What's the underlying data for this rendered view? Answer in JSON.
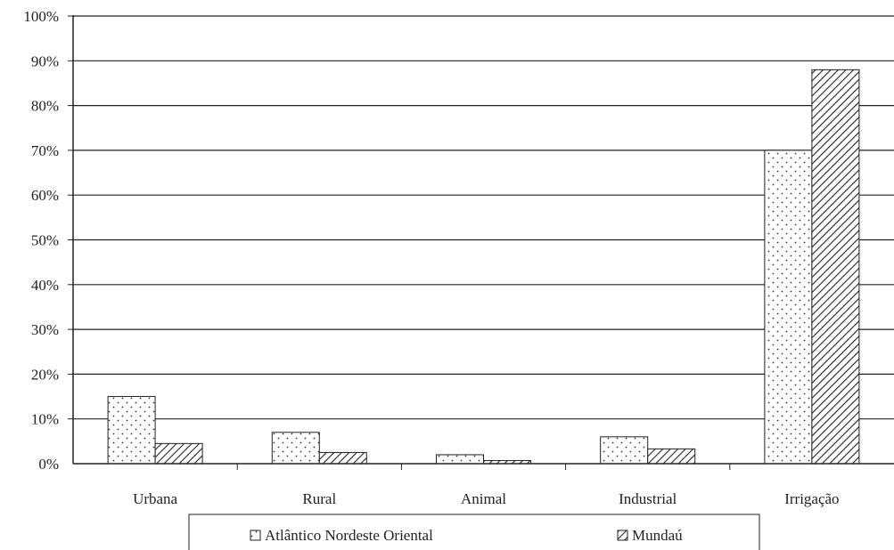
{
  "chart_data": {
    "type": "bar",
    "categories": [
      "Urbana",
      "Rural",
      "Animal",
      "Industrial",
      "Irrigação"
    ],
    "series": [
      {
        "name": "Atlântico Nordeste Oriental",
        "values": [
          15,
          7,
          2,
          6,
          70
        ],
        "pattern": "dots"
      },
      {
        "name": "Mundaú",
        "values": [
          4.5,
          2.5,
          0.7,
          3.3,
          88
        ],
        "pattern": "diagonal-hatch"
      }
    ],
    "ylim": [
      0,
      100
    ],
    "yticks": [
      "0%",
      "10%",
      "20%",
      "30%",
      "40%",
      "50%",
      "60%",
      "70%",
      "80%",
      "90%",
      "100%"
    ],
    "ytick_values": [
      0,
      10,
      20,
      30,
      40,
      50,
      60,
      70,
      80,
      90,
      100
    ],
    "title": "",
    "xlabel": "",
    "ylabel": "",
    "grid": "horizontal",
    "legend_position": "bottom"
  }
}
